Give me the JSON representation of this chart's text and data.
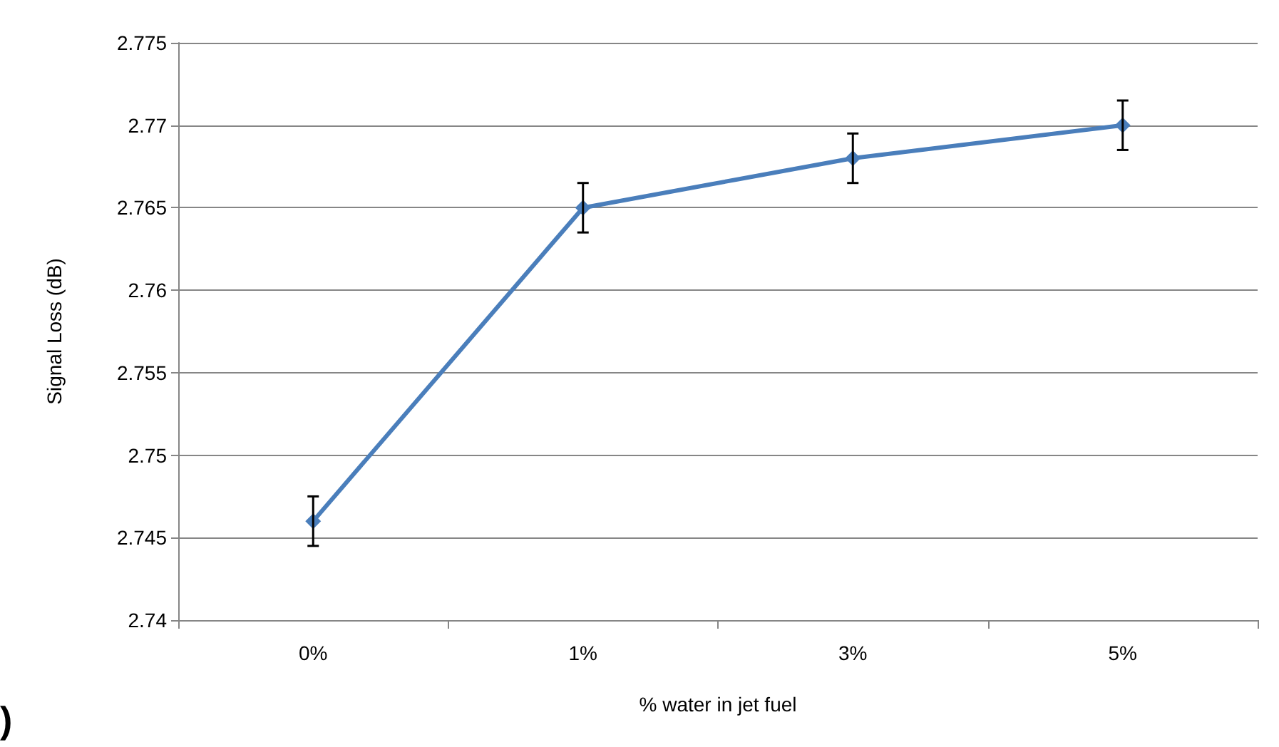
{
  "chart_data": {
    "type": "line",
    "xlabel": "% water in jet fuel",
    "ylabel": "Signal Loss (dB)",
    "categories": [
      "0%",
      "1%",
      "3%",
      "5%"
    ],
    "series": [
      {
        "color": "#4a7ebb",
        "values": [
          2.746,
          2.765,
          2.768,
          2.77
        ],
        "errors": [
          0.0015,
          0.0015,
          0.0015,
          0.0015
        ]
      }
    ],
    "ylim": [
      2.74,
      2.775
    ],
    "yticks": [
      2.74,
      2.745,
      2.75,
      2.755,
      2.76,
      2.765,
      2.77,
      2.775
    ],
    "grid": "y",
    "marker": "diamond",
    "line_style": "solid",
    "annotations": [
      ")"
    ]
  }
}
